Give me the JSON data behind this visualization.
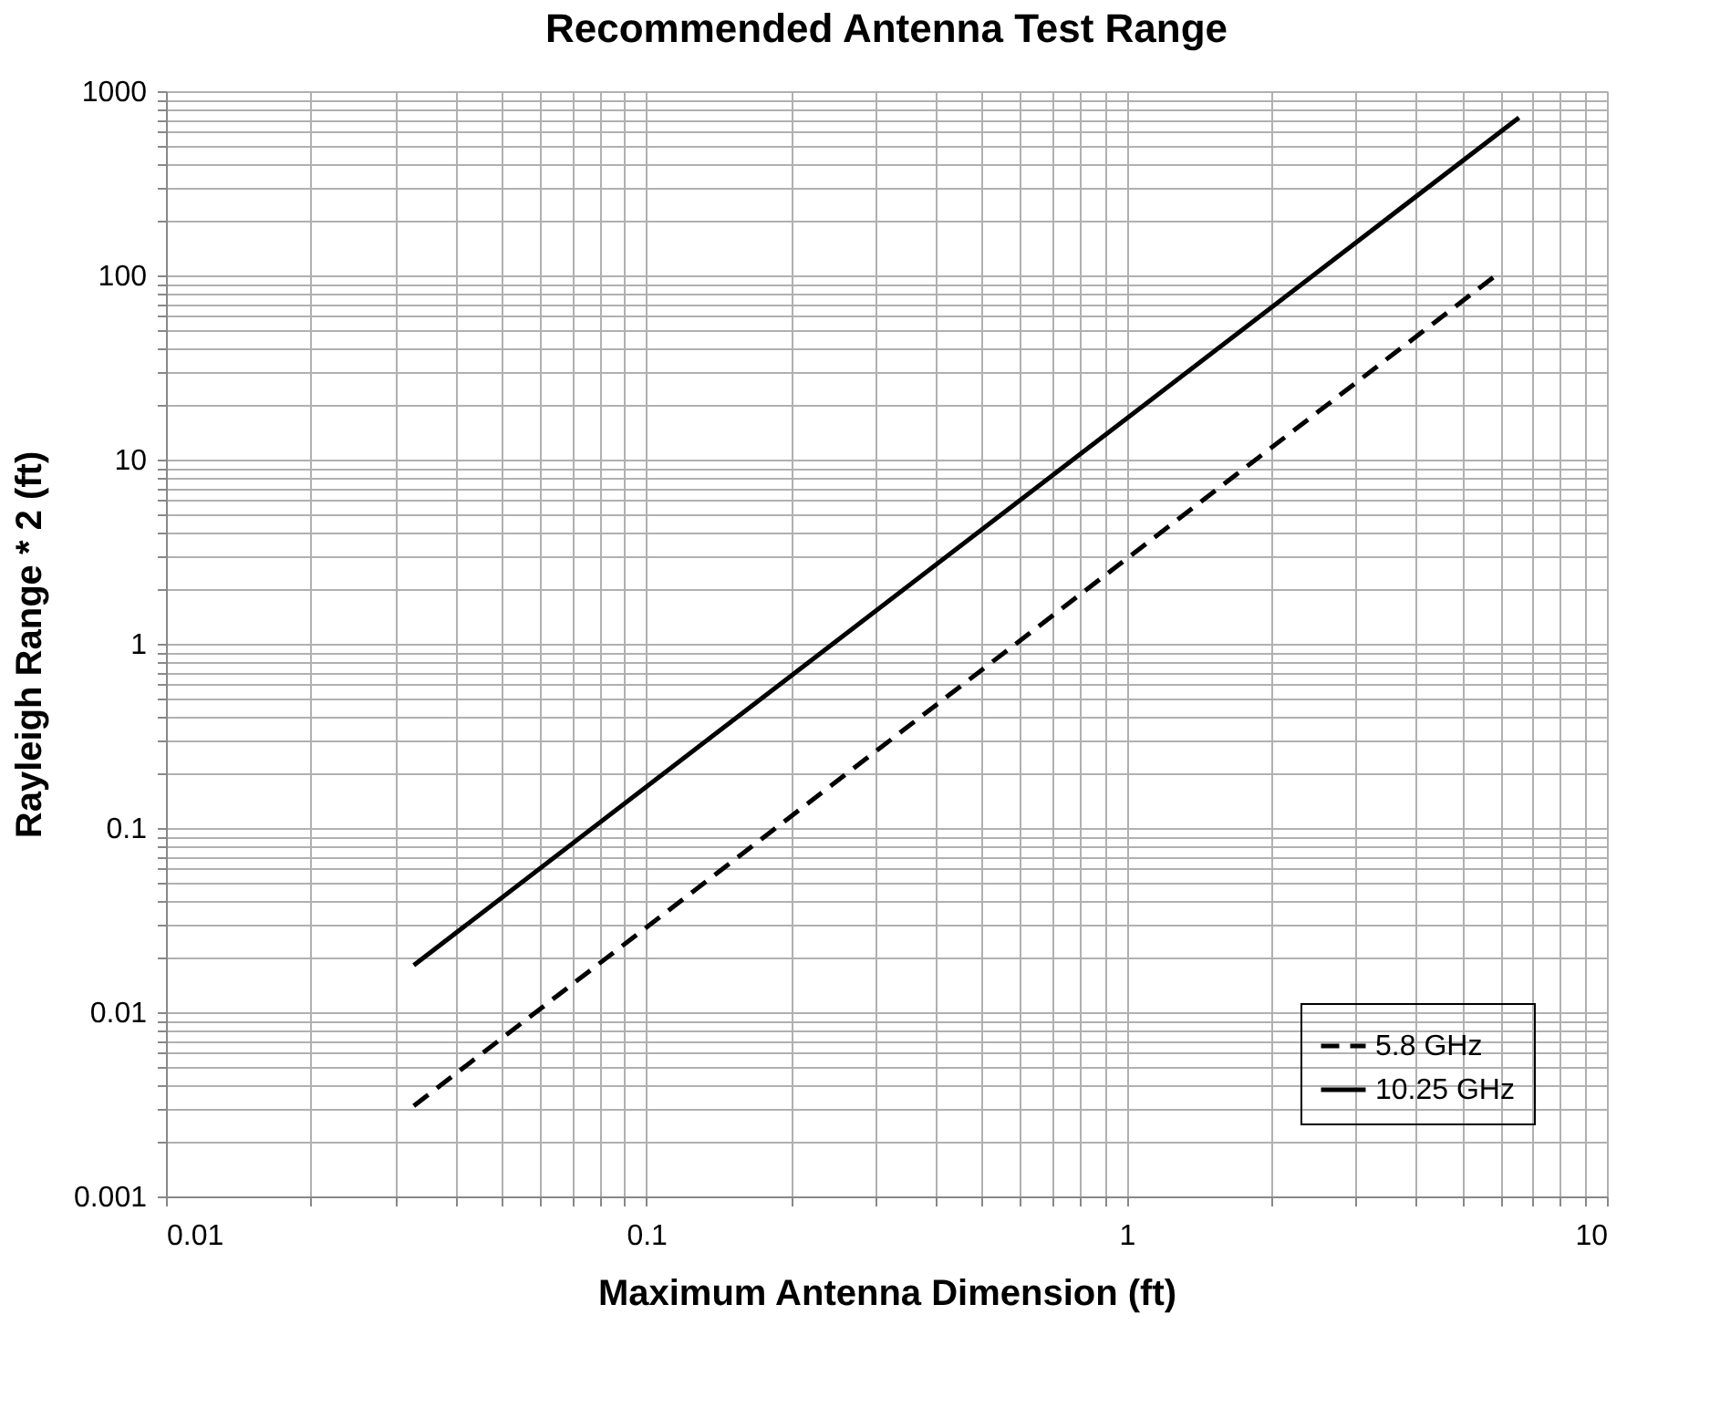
{
  "chart_data": {
    "type": "line",
    "title": "Recommended Antenna Test Range",
    "xlabel": "Maximum Antenna Dimension (ft)",
    "ylabel": "Rayleigh Range * 2 (ft)",
    "log": "xy",
    "grid": true,
    "legend": "bottom right",
    "marker": "none",
    "xlim": [
      0.01,
      10
    ],
    "ylim": [
      0.001,
      1000
    ],
    "xticks": [
      0.01,
      {
        "value": 0.02,
        "label": null
      },
      {
        "value": 0.03,
        "label": null
      },
      {
        "value": 0.04,
        "label": null
      },
      {
        "value": 0.05,
        "label": null
      },
      {
        "value": 0.06,
        "label": null
      },
      {
        "value": 0.07,
        "label": null
      },
      {
        "value": 0.08,
        "label": null
      },
      {
        "value": 0.09,
        "label": null
      },
      0.1,
      {
        "value": 0.2,
        "label": null
      },
      {
        "value": 0.3,
        "label": null
      },
      {
        "value": 0.4,
        "label": null
      },
      {
        "value": 0.5,
        "label": null
      },
      {
        "value": 0.6,
        "label": null
      },
      {
        "value": 0.7,
        "label": null
      },
      {
        "value": 0.8,
        "label": null
      },
      {
        "value": 0.9,
        "label": null
      },
      1,
      {
        "value": 2,
        "label": null
      },
      {
        "value": 3,
        "label": null
      },
      {
        "value": 4,
        "label": null
      },
      {
        "value": 5,
        "label": null
      },
      {
        "value": 6,
        "label": null
      },
      {
        "value": 7,
        "label": null
      },
      {
        "value": 8,
        "label": null
      },
      {
        "value": 9,
        "label": null
      },
      10
    ],
    "yticks": [
      0.001,
      {
        "value": 0.002,
        "label": null
      },
      {
        "value": 0.003,
        "label": null
      },
      {
        "value": 0.004,
        "label": null
      },
      {
        "value": 0.005,
        "label": null
      },
      {
        "value": 0.006,
        "label": null
      },
      {
        "value": 0.007,
        "label": null
      },
      {
        "value": 0.008,
        "label": null
      },
      {
        "value": 0.009,
        "label": null
      },
      0.01,
      {
        "value": 0.02,
        "label": null
      },
      {
        "value": 0.03,
        "label": null
      },
      {
        "value": 0.04,
        "label": null
      },
      {
        "value": 0.05,
        "label": null
      },
      {
        "value": 0.06,
        "label": null
      },
      {
        "value": 0.07,
        "label": null
      },
      {
        "value": 0.08,
        "label": null
      },
      {
        "value": 0.09,
        "label": null
      },
      0.1,
      {
        "value": 0.2,
        "label": null
      },
      {
        "value": 0.3,
        "label": null
      },
      {
        "value": 0.4,
        "label": null
      },
      {
        "value": 0.5,
        "label": null
      },
      {
        "value": 0.6,
        "label": null
      },
      {
        "value": 0.7,
        "label": null
      },
      {
        "value": 0.8,
        "label": null
      },
      {
        "value": 0.9,
        "label": null
      },
      1,
      {
        "value": 2,
        "label": null
      },
      {
        "value": 3,
        "label": null
      },
      {
        "value": 4,
        "label": null
      },
      {
        "value": 5,
        "label": null
      },
      {
        "value": 6,
        "label": null
      },
      {
        "value": 7,
        "label": null
      },
      {
        "value": 8,
        "label": null
      },
      {
        "value": 9,
        "label": null
      },
      10,
      {
        "value": 20,
        "label": null
      },
      {
        "value": 30,
        "label": null
      },
      {
        "value": 40,
        "label": null
      },
      {
        "value": 50,
        "label": null
      },
      {
        "value": 60,
        "label": null
      },
      {
        "value": 70,
        "label": null
      },
      {
        "value": 80,
        "label": null
      },
      {
        "value": 90,
        "label": null
      },
      100,
      {
        "value": 200,
        "label": null
      },
      {
        "value": 300,
        "label": null
      },
      {
        "value": 400,
        "label": null
      },
      {
        "value": 500,
        "label": null
      },
      {
        "value": 600,
        "label": null
      },
      {
        "value": 700,
        "label": null
      },
      {
        "value": 800,
        "label": null
      },
      {
        "value": 900,
        "label": null
      },
      1000
    ],
    "series": [
      {
        "name": "5.8 GHz",
        "color": "#000000",
        "line_style": "dashed",
        "x": [
          0.0328,
          5.9
        ],
        "values": [
          0.0031,
          101
        ]
      },
      {
        "name": "10.25 GHz",
        "color": "#000000",
        "line_style": "solid",
        "x": [
          0.0328,
          6.56
        ],
        "values": [
          0.018,
          719
        ]
      }
    ]
  }
}
